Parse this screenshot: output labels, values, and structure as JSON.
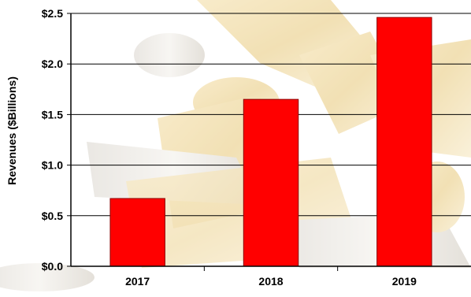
{
  "chart_data": {
    "type": "bar",
    "title": "",
    "xlabel": "",
    "ylabel": "Revenues ($Billions)",
    "categories": [
      "2017",
      "2018",
      "2019"
    ],
    "values": [
      0.67,
      1.65,
      2.46
    ],
    "ylim": [
      0,
      2.5
    ],
    "yticks": [
      "$0.0",
      "$0.5",
      "$1.0",
      "$1.5",
      "$2.0",
      "$2.5"
    ],
    "grid": true,
    "legend": "none",
    "bar_color": "#ff0000",
    "bar_edge_color": "#8b0000",
    "background": "microscope-photo-watermark"
  }
}
